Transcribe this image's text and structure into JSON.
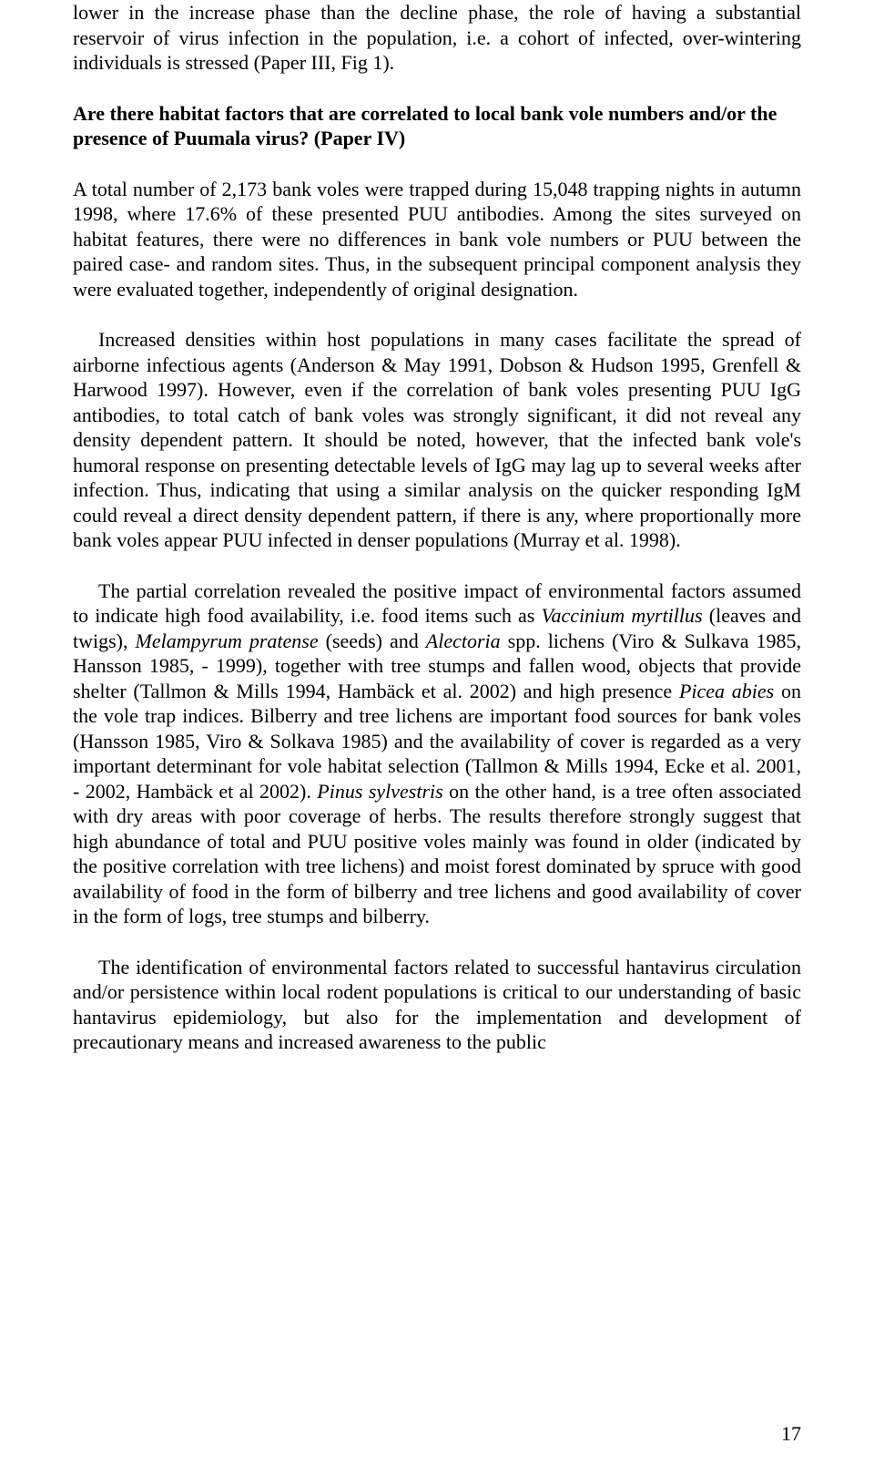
{
  "para1": "lower in the increase phase than the decline phase, the role of having a substantial reservoir of virus infection in the population, i.e. a cohort of infected, over-wintering individuals is stressed (Paper III, Fig 1).",
  "heading": "Are there habitat factors that are correlated to local bank vole numbers and/or the presence of Puumala virus? (Paper IV)",
  "para2": "A total number of 2,173 bank voles were trapped during 15,048 trapping nights in autumn 1998, where 17.6% of these presented PUU antibodies. Among the sites surveyed on habitat features, there were no differences in bank vole numbers or PUU between the paired case- and random sites. Thus, in the subsequent principal component analysis they were evaluated together, independently of original designation.",
  "para3": "Increased densities within host populations in many cases facilitate the spread of airborne infectious agents (Anderson & May 1991, Dobson & Hudson 1995, Grenfell & Harwood 1997). However, even if the correlation of bank voles presenting PUU IgG antibodies, to total catch of bank voles was strongly significant, it did not reveal any density dependent pattern. It should be noted, however, that the infected bank vole's humoral response on presenting detectable levels of IgG may lag up to several weeks after infection. Thus, indicating that using a similar analysis on the quicker responding IgM could reveal a direct density dependent pattern, if there is any, where proportionally more bank voles appear PUU infected in denser populations (Murray et al. 1998).",
  "para4_a": "The partial correlation revealed the positive impact of environmental factors assumed to indicate high food availability, i.e. food items such as ",
  "para4_i1": "Vaccinium myrtillus",
  "para4_b": " (leaves and twigs), ",
  "para4_i2": "Melampyrum pratense",
  "para4_c": " (seeds) and ",
  "para4_i3": "Alectoria",
  "para4_d": " spp. lichens (Viro & Sulkava 1985, Hansson 1985, - 1999), together with tree stumps and fallen wood, objects that provide shelter (Tallmon & Mills 1994, Hambäck et al. 2002) and high presence ",
  "para4_i4": "Picea abies",
  "para4_e": " on the vole trap indices. Bilberry and tree lichens are important food sources for bank voles (Hansson 1985, Viro & Solkava 1985) and the availability of cover is regarded as a very important determinant for vole habitat selection (Tallmon & Mills 1994, Ecke et al. 2001, - 2002, Hambäck et al 2002). ",
  "para4_i5": "Pinus sylvestris",
  "para4_f": " on the other hand, is a tree often associated with dry areas with poor coverage of herbs. The results therefore strongly suggest that high abundance of total and PUU positive voles mainly was found in older (indicated by the positive correlation with tree lichens) and moist forest dominated by spruce with good availability of food in the form of bilberry and tree lichens and good availability of cover in the form of logs, tree stumps and bilberry.",
  "para5": "The identification of environmental factors related to successful hantavirus circulation and/or persistence within local rodent populations is critical to our understanding of basic hantavirus epidemiology, but also for the implementation and development of precautionary means and increased awareness to the public",
  "page_number": "17"
}
